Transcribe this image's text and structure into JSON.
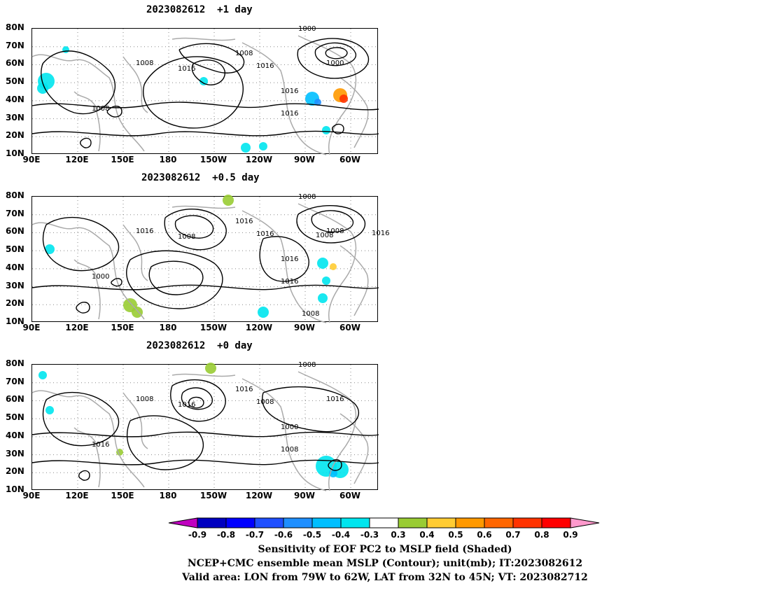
{
  "panels": [
    {
      "title": "2023082612  +1 day",
      "contour_labels": [
        "1000",
        "1008",
        "1008",
        "1016",
        "1016",
        "1016",
        "1016",
        "1008",
        "1000"
      ]
    },
    {
      "title": "2023082612  +0.5 day",
      "contour_labels": [
        "1008",
        "1016",
        "1016",
        "1008",
        "1016",
        "1016",
        "1016",
        "1000",
        "1008",
        "1016",
        "1008",
        "1008"
      ]
    },
    {
      "title": "2023082612  +0 day",
      "contour_labels": [
        "1008",
        "1016",
        "1008",
        "1016",
        "1008",
        "1000",
        "1008",
        "1016",
        "1016"
      ]
    }
  ],
  "lat_ticks": [
    "80N",
    "70N",
    "60N",
    "50N",
    "40N",
    "30N",
    "20N",
    "10N"
  ],
  "lon_ticks": [
    "90E",
    "120E",
    "150E",
    "180",
    "150W",
    "120W",
    "90W",
    "60W"
  ],
  "colorbar": {
    "labels": [
      "-0.9",
      "-0.8",
      "-0.7",
      "-0.6",
      "-0.5",
      "-0.4",
      "-0.3",
      "0.3",
      "0.4",
      "0.5",
      "0.6",
      "0.7",
      "0.8",
      "0.9"
    ],
    "colors": [
      "#c000c0",
      "#0000c0",
      "#0000ff",
      "#1f4fff",
      "#1f8fff",
      "#00bfff",
      "#00e5ee",
      "#ffffff",
      "#99cc33",
      "#ffcc33",
      "#ff9900",
      "#ff6600",
      "#ff3300",
      "#ff0000",
      "#ff99cc"
    ]
  },
  "caption": {
    "line1": "Sensitivity of EOF PC2 to MSLP field (Shaded)",
    "line2": "NCEP+CMC ensemble mean MSLP (Contour); unit(mb); IT:2023082612",
    "line3": "Valid area: LON from 79W to 62W, LAT from 32N to 45N; VT: 2023082712"
  }
}
